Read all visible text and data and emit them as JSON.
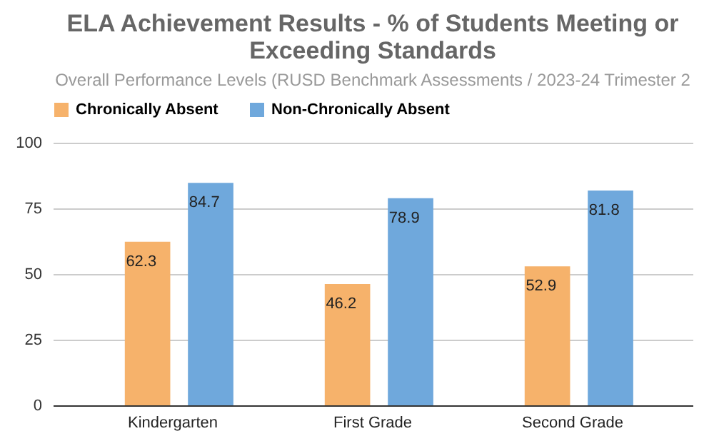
{
  "chart_data": {
    "type": "bar",
    "title": "ELA Achievement Results - % of Students Meeting or Exceeding Standards",
    "subtitle": "Overall Performance Levels (RUSD Benchmark Assessments / 2023-24 Trimester 2",
    "categories": [
      "Kindergarten",
      "First Grade",
      "Second Grade"
    ],
    "series": [
      {
        "name": "Chronically Absent",
        "color": "#f6b26b",
        "values": [
          62.3,
          46.2,
          52.9
        ]
      },
      {
        "name": "Non-Chronically Absent",
        "color": "#6fa8dc",
        "values": [
          84.7,
          78.9,
          81.8
        ]
      }
    ],
    "ylim": [
      0,
      100
    ],
    "yticks": [
      0,
      25,
      50,
      75,
      100
    ],
    "grid": "y",
    "legend": "top",
    "data_labels": true
  }
}
